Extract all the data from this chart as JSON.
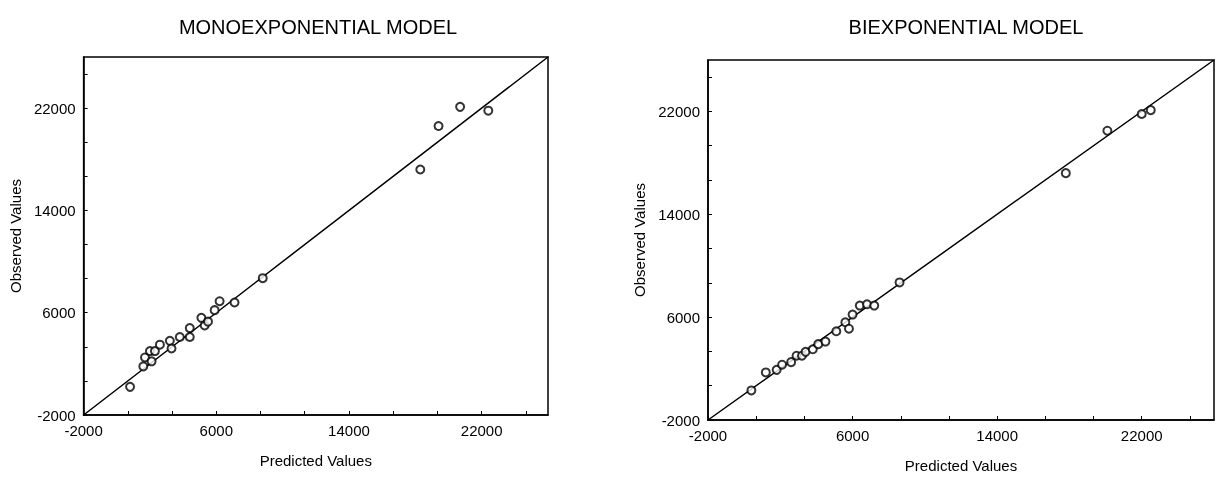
{
  "chart_data": [
    {
      "type": "scatter",
      "title": "MONOEXPONENTIAL MODEL",
      "xlabel": "Predicted Values",
      "ylabel": "Observed Values",
      "marker": "circle",
      "xlim": [
        -2000,
        26000
      ],
      "ylim": [
        -2000,
        26000
      ],
      "xticks": [
        -2000,
        {
          "value": 667,
          "label": null
        },
        {
          "value": 3333,
          "label": null
        },
        6000,
        {
          "value": 8667,
          "label": null
        },
        {
          "value": 11333,
          "label": null
        },
        14000,
        {
          "value": 16667,
          "label": null
        },
        {
          "value": 19333,
          "label": null
        },
        22000,
        {
          "value": 24667,
          "label": null
        }
      ],
      "yticks": [
        -2000,
        {
          "value": 667,
          "label": null
        },
        {
          "value": 3333,
          "label": null
        },
        6000,
        {
          "value": 8667,
          "label": null
        },
        {
          "value": 11333,
          "label": null
        },
        14000,
        {
          "value": 16667,
          "label": null
        },
        {
          "value": 19333,
          "label": null
        },
        22000,
        {
          "value": 24667,
          "label": null
        }
      ],
      "series": [
        {
          "type": "scatter",
          "color": "#000000",
          "x": [
            800,
            1600,
            1700,
            2000,
            2100,
            2300,
            2600,
            3200,
            3300,
            3800,
            4400,
            4400,
            5100,
            5300,
            5500,
            5900,
            6200,
            7100,
            8800,
            18300,
            19400,
            20700,
            22400
          ],
          "values": [
            200,
            1800,
            2500,
            3000,
            2200,
            3000,
            3500,
            3800,
            3200,
            4100,
            4800,
            4100,
            5600,
            5000,
            5300,
            6200,
            6900,
            6800,
            8700,
            17200,
            20600,
            22100,
            21800
          ]
        },
        {
          "type": "line",
          "marker": "none",
          "color": "#000000",
          "x": [
            -2000,
            26000
          ],
          "values": [
            -2000,
            26000
          ]
        }
      ]
    },
    {
      "type": "scatter",
      "title": "BIEXPONENTIAL MODEL",
      "xlabel": "Predicted Values",
      "ylabel": "Observed Values",
      "marker": "circle",
      "xlim": [
        -2000,
        26000
      ],
      "ylim": [
        -2000,
        26000
      ],
      "xticks": [
        -2000,
        {
          "value": 667,
          "label": null
        },
        {
          "value": 3333,
          "label": null
        },
        6000,
        {
          "value": 8667,
          "label": null
        },
        {
          "value": 11333,
          "label": null
        },
        14000,
        {
          "value": 16667,
          "label": null
        },
        {
          "value": 19333,
          "label": null
        },
        22000,
        {
          "value": 24667,
          "label": null
        }
      ],
      "yticks": [
        -2000,
        {
          "value": 667,
          "label": null
        },
        {
          "value": 3333,
          "label": null
        },
        6000,
        {
          "value": 8667,
          "label": null
        },
        {
          "value": 11333,
          "label": null
        },
        14000,
        {
          "value": 16667,
          "label": null
        },
        {
          "value": 19333,
          "label": null
        },
        22000,
        {
          "value": 24667,
          "label": null
        }
      ],
      "series": [
        {
          "type": "scatter",
          "color": "#000000",
          "x": [
            400,
            1200,
            1800,
            2100,
            2600,
            2900,
            3200,
            3400,
            3800,
            4100,
            4500,
            5100,
            5600,
            5800,
            6000,
            6400,
            6800,
            7200,
            8600,
            17800,
            20100,
            22000,
            22500
          ],
          "values": [
            300,
            1700,
            1900,
            2300,
            2500,
            3000,
            3000,
            3300,
            3500,
            3900,
            4100,
            4900,
            5600,
            5100,
            6200,
            6900,
            7000,
            6900,
            8700,
            17200,
            20500,
            21800,
            22100
          ]
        },
        {
          "type": "line",
          "marker": "none",
          "color": "#000000",
          "x": [
            -2000,
            26000
          ],
          "values": [
            -2000,
            26000
          ]
        }
      ]
    }
  ]
}
